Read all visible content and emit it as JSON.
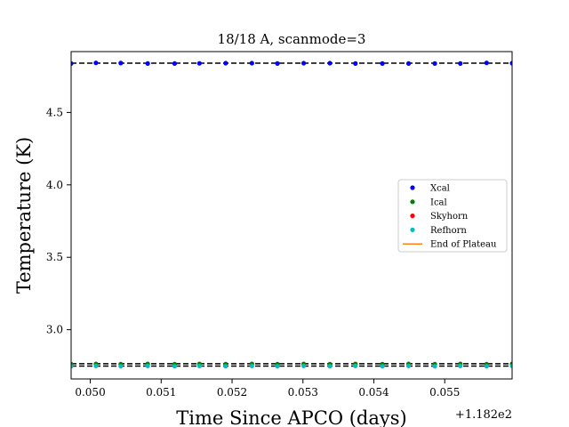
{
  "chart_data": {
    "type": "scatter",
    "title": "18/18 A, scanmode=3",
    "xlabel": "Time Since APCO (days)",
    "ylabel": "Temperature (K)",
    "x_offset_label": "+1.182e2",
    "xlim": [
      0.04973,
      0.05595
    ],
    "ylim": [
      2.66,
      4.92
    ],
    "xticks": [
      0.05,
      0.051,
      0.052,
      0.053,
      0.054,
      0.055
    ],
    "xtick_labels": [
      "0.050",
      "0.051",
      "0.052",
      "0.053",
      "0.054",
      "0.055"
    ],
    "yticks": [
      3.0,
      3.5,
      4.0,
      4.5
    ],
    "ytick_labels": [
      "3.0",
      "3.5",
      "4.0",
      "4.5"
    ],
    "grid": false,
    "legend_position": "center-right",
    "x": [
      0.04973,
      0.05008,
      0.05043,
      0.05081,
      0.05119,
      0.05154,
      0.05191,
      0.05228,
      0.05264,
      0.05301,
      0.05338,
      0.05374,
      0.05412,
      0.05449,
      0.05486,
      0.05522,
      0.05559,
      0.05595
    ],
    "series": [
      {
        "name": "Xcal",
        "color": "#0000ff",
        "values": [
          4.838,
          4.842,
          4.841,
          4.838,
          4.838,
          4.839,
          4.84,
          4.84,
          4.838,
          4.84,
          4.84,
          4.838,
          4.838,
          4.838,
          4.838,
          4.838,
          4.842,
          4.84
        ]
      },
      {
        "name": "Ical",
        "color": "#008000",
        "values": [
          2.762,
          2.764,
          2.762,
          2.764,
          2.762,
          2.764,
          2.762,
          2.764,
          2.762,
          2.764,
          2.762,
          2.764,
          2.762,
          2.764,
          2.762,
          2.764,
          2.762,
          2.764
        ]
      },
      {
        "name": "Skyhorn",
        "color": "#ff0000",
        "values": []
      },
      {
        "name": "Refhorn",
        "color": "#00bfbf",
        "values": [
          2.748,
          2.75,
          2.748,
          2.75,
          2.748,
          2.75,
          2.748,
          2.75,
          2.748,
          2.75,
          2.748,
          2.75,
          2.748,
          2.75,
          2.748,
          2.75,
          2.748,
          2.75
        ]
      }
    ],
    "end_of_plateau": {
      "name": "End of Plateau",
      "color": "#ff7f0e"
    },
    "reference_lines": [
      4.84,
      2.765,
      2.749
    ]
  }
}
